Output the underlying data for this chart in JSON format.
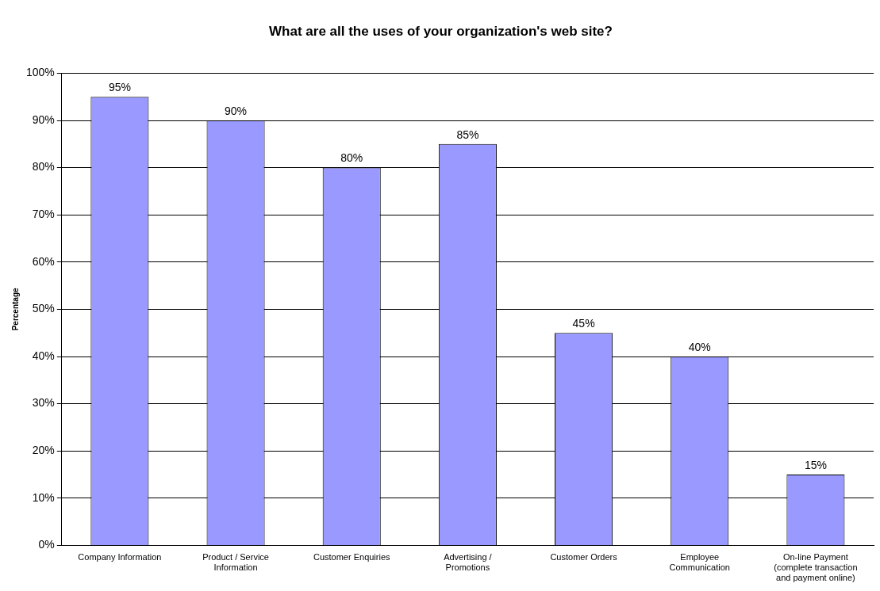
{
  "chart_data": {
    "type": "bar",
    "title": "What are all the uses of your organization's web site?",
    "ylabel": "Percentage",
    "categories": [
      "Company Information",
      "Product / Service Information",
      "Customer Enquiries",
      "Advertising / Promotions",
      "Customer Orders",
      "Employee Communication",
      "On-line Payment (complete transaction and payment online)"
    ],
    "values": [
      95,
      90,
      80,
      85,
      45,
      40,
      15
    ],
    "color": "#9999ff",
    "value_labels": [
      "95%",
      "90%",
      "80%",
      "85%",
      "45%",
      "40%",
      "15%"
    ],
    "ylim": [
      0,
      100
    ],
    "yticks": [
      {
        "value": 0,
        "label": "0%"
      },
      {
        "value": 10,
        "label": "10%"
      },
      {
        "value": 20,
        "label": "20%"
      },
      {
        "value": 30,
        "label": "30%"
      },
      {
        "value": 40,
        "label": "40%"
      },
      {
        "value": 50,
        "label": "50%"
      },
      {
        "value": 60,
        "label": "60%"
      },
      {
        "value": 70,
        "label": "70%"
      },
      {
        "value": 80,
        "label": "80%"
      },
      {
        "value": 90,
        "label": "90%"
      },
      {
        "value": 100,
        "label": "100%"
      }
    ],
    "grid": "y",
    "legend": false
  }
}
